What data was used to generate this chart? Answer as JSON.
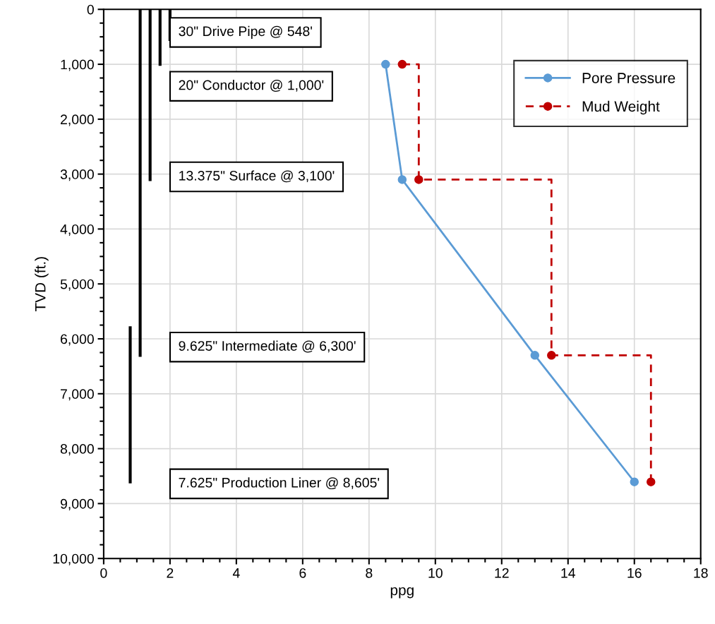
{
  "chart_data": {
    "type": "line",
    "xlabel": "ppg",
    "ylabel": "TVD (ft.)",
    "xlim": [
      0,
      18
    ],
    "xticks": [
      0,
      2,
      4,
      6,
      8,
      10,
      12,
      14,
      16,
      18
    ],
    "ylim": [
      10000,
      0
    ],
    "yticks": [
      0,
      {
        "value": 1000,
        "label": "1,000"
      },
      {
        "value": 2000,
        "label": "2,000"
      },
      {
        "value": 3000,
        "label": "3,000"
      },
      {
        "value": 4000,
        "label": "4,000"
      },
      {
        "value": 5000,
        "label": "5,000"
      },
      {
        "value": 6000,
        "label": "6,000"
      },
      {
        "value": 7000,
        "label": "7,000"
      },
      {
        "value": 8000,
        "label": "8,000"
      },
      {
        "value": 9000,
        "label": "9,000"
      },
      {
        "value": 10000,
        "label": "10,000"
      }
    ],
    "grid": true,
    "legend": "top right",
    "series": [
      {
        "name": "Pore Pressure",
        "color": "#5b9bd5",
        "marker": "circle",
        "line_style": "solid",
        "x": [
          8.5,
          9,
          13,
          16
        ],
        "values": [
          1000,
          3100,
          6300,
          8605
        ]
      },
      {
        "name": "Mud Weight",
        "type": "step",
        "color": "#c00000",
        "marker": "circle",
        "line_style": "dashed",
        "x": [
          9,
          9.5,
          13.5,
          16.5
        ],
        "values": [
          1000,
          3100,
          6300,
          8605
        ]
      },
      {
        "type": "line",
        "color": "#000000",
        "marker": "none",
        "line_style": "solid",
        "x": [
          2.0,
          2.0
        ],
        "values": [
          0,
          548
        ]
      },
      {
        "type": "line",
        "color": "#000000",
        "marker": "none",
        "line_style": "solid",
        "x": [
          1.7,
          1.7
        ],
        "values": [
          0,
          1000
        ]
      },
      {
        "type": "line",
        "color": "#000000",
        "marker": "none",
        "line_style": "solid",
        "x": [
          1.4,
          1.4
        ],
        "values": [
          0,
          3100
        ]
      },
      {
        "type": "line",
        "color": "#000000",
        "marker": "none",
        "line_style": "solid",
        "x": [
          1.1,
          1.1
        ],
        "values": [
          0,
          6300
        ]
      },
      {
        "type": "line",
        "color": "#000000",
        "marker": "none",
        "line_style": "solid",
        "x": [
          0.8,
          0.8
        ],
        "values": [
          5800,
          8605
        ]
      }
    ],
    "annotations": [
      "30\" Drive Pipe @ 548'",
      "20\" Conductor @ 1,000'",
      "13.375\" Surface @ 3,100'",
      "9.625\" Intermediate @ 6,300'",
      "7.625\" Production Liner @ 8,605'"
    ]
  }
}
